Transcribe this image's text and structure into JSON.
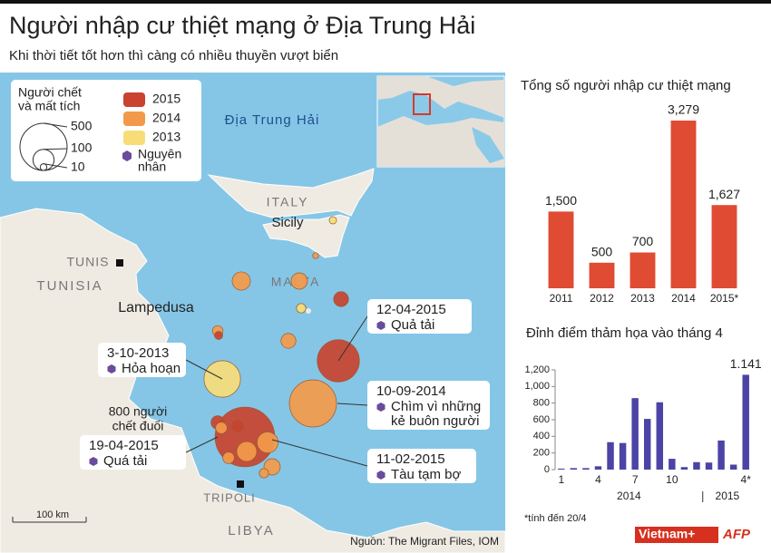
{
  "header": {
    "title": "Người nhập cư thiệt mạng ở Địa Trung Hải",
    "subtitle": "Khi thời tiết tốt hơn thì càng có nhiều thuyền vượt biển"
  },
  "map": {
    "sea_label": "Địa Trung Hải",
    "places": [
      "ITALY",
      "Sicily",
      "TUNIS",
      "TUNISIA",
      "MALTA",
      "Lampedusa",
      "TRIPOLI",
      "LIBYA"
    ],
    "legend": {
      "size_title": [
        "Người chết",
        "và mất tích"
      ],
      "sizes": [
        500,
        100,
        10
      ],
      "years": [
        {
          "name": "2015",
          "color": "#c9432f"
        },
        {
          "name": "2014",
          "color": "#f39a4a"
        },
        {
          "name": "2013",
          "color": "#f8dc78"
        }
      ],
      "cause_title": [
        "Nguyên",
        "nhân"
      ]
    },
    "incidents": [
      {
        "year": 0,
        "dead": 800
      },
      {
        "year": 0,
        "dead": 400
      },
      {
        "year": 1,
        "dead": 500
      },
      {
        "year": 2,
        "dead": 300
      },
      {
        "year": 1,
        "dead": 75
      },
      {
        "year": 1,
        "dead": 60
      },
      {
        "year": 0,
        "dead": 50
      },
      {
        "year": 1,
        "dead": 50
      },
      {
        "year": 1,
        "dead": 100
      },
      {
        "year": 1,
        "dead": 90
      },
      {
        "year": 1,
        "dead": 60
      },
      {
        "year": 0,
        "dead": 40
      },
      {
        "year": 1,
        "dead": 30
      },
      {
        "year": 2,
        "dead": 20
      },
      {
        "year": 2,
        "dead": 12
      },
      {
        "year": 1,
        "dead": 25
      },
      {
        "year": 0,
        "dead": 15
      },
      {
        "year": 1,
        "dead": 20
      },
      {
        "year": 1,
        "dead": 30
      },
      {
        "year": 0,
        "dead": 30
      },
      {
        "year": 1,
        "dead": 8
      }
    ],
    "annotations": [
      {
        "date": "12-04-2015",
        "cause": [
          "Quả tải"
        ]
      },
      {
        "date": "3-10-2013",
        "cause": [
          "Hỏa hoạn"
        ]
      },
      {
        "date": "10-09-2014",
        "cause": [
          "Chìm vì những",
          "kẻ buôn người"
        ]
      },
      {
        "note": [
          "800 người",
          "chết đuối"
        ],
        "date": "19-04-2015",
        "cause": [
          "Quá tải"
        ]
      },
      {
        "date": "11-02-2015",
        "cause": [
          "Tàu tạm bợ"
        ]
      }
    ],
    "scale": "100 km",
    "source": "Nguồn: The Migrant Files, IOM"
  },
  "chart_data": [
    {
      "type": "bar",
      "title": "Tổng số người nhập cư thiệt mạng",
      "categories": [
        "2011",
        "2012",
        "2013",
        "2014",
        "2015*"
      ],
      "values": [
        1500,
        500,
        700,
        3279,
        1627
      ],
      "value_labels": [
        "1,500",
        "500",
        "700",
        "3,279",
        "1,627"
      ],
      "color": "#e04b34"
    },
    {
      "type": "bar",
      "title": "Đỉnh điểm thảm họa vào tháng 4",
      "categories": [
        "1",
        null,
        null,
        "4",
        null,
        null,
        "7",
        null,
        null,
        "10",
        null,
        null,
        null,
        null,
        null,
        "4*"
      ],
      "groups": [
        "2014",
        "2015"
      ],
      "values": [
        12,
        18,
        18,
        40,
        330,
        320,
        860,
        610,
        810,
        130,
        30,
        90,
        85,
        350,
        60,
        1141
      ],
      "value_labels": [
        null,
        null,
        null,
        null,
        null,
        null,
        null,
        null,
        null,
        null,
        null,
        null,
        null,
        null,
        null,
        "1.141"
      ],
      "color": "#4b44a6",
      "ylim": [
        0,
        1200
      ],
      "yticks": [
        0,
        200,
        400,
        600,
        800,
        {
          "value": 1000,
          "label": "1,000"
        },
        {
          "value": 1200,
          "label": "1,200"
        }
      ],
      "grid": false
    }
  ],
  "footer": {
    "note": "*tính đến 20/4",
    "logos": [
      "Vietnam+",
      "AFP"
    ]
  }
}
